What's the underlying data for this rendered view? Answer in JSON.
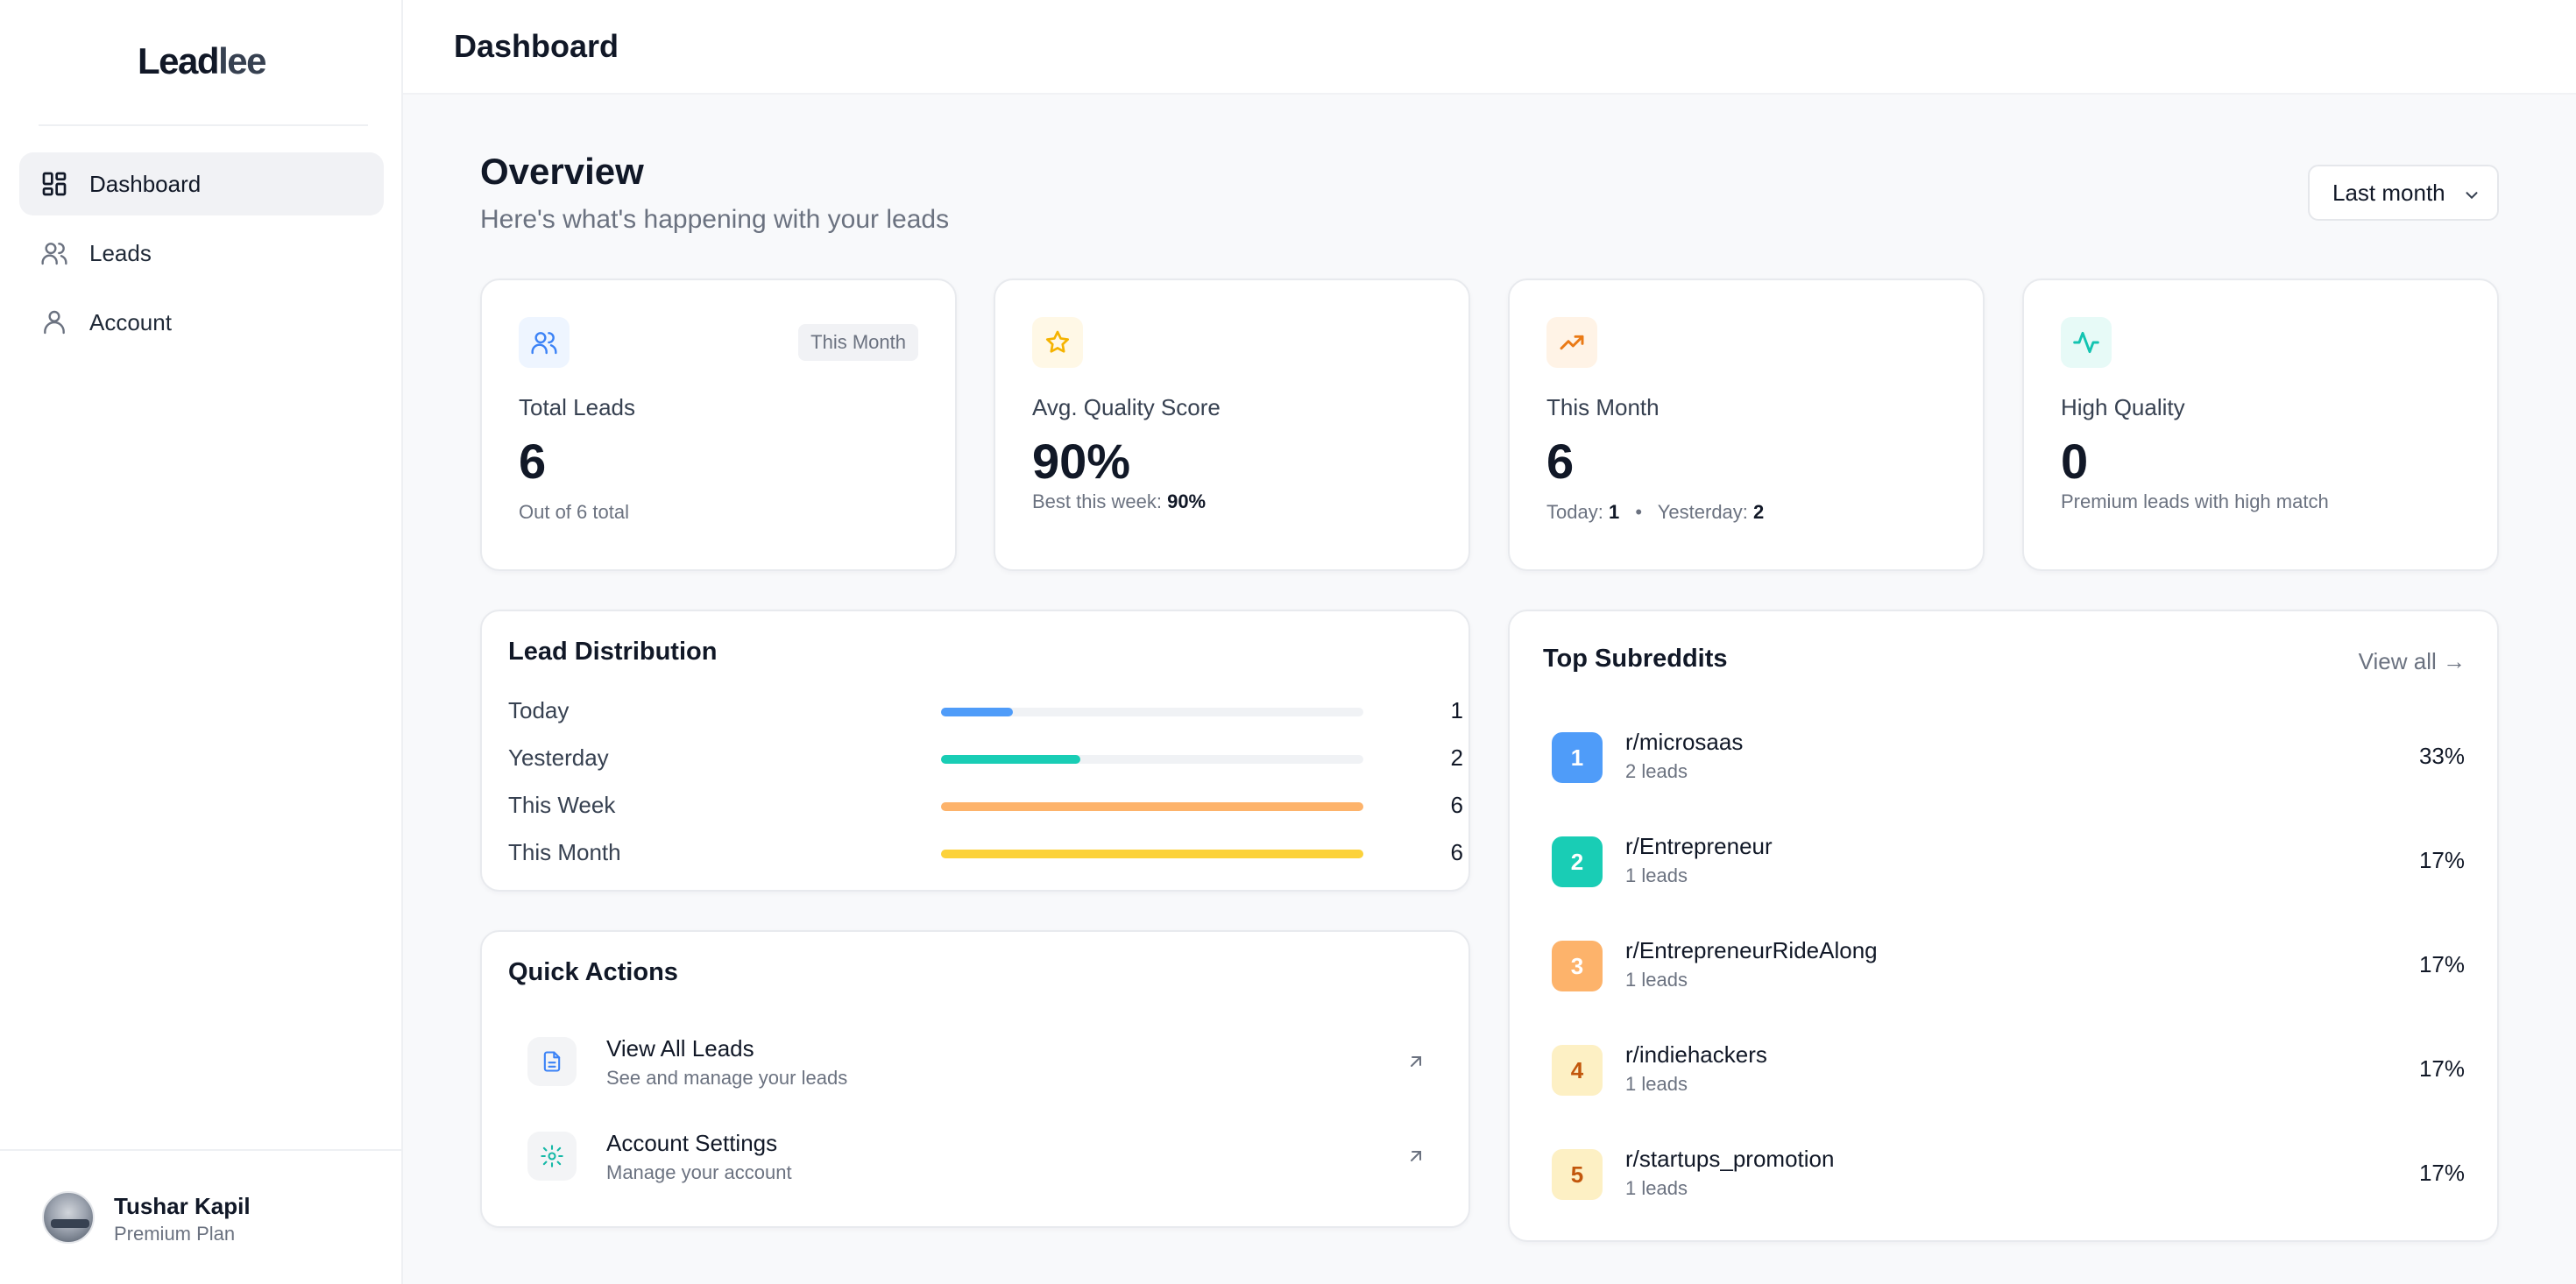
{
  "brand": {
    "name_a": "Lead",
    "name_b": "lee"
  },
  "sidebar": {
    "items": [
      {
        "label": "Dashboard",
        "icon": "dashboard-grid-icon",
        "active": true
      },
      {
        "label": "Leads",
        "icon": "users-icon",
        "active": false
      },
      {
        "label": "Account",
        "icon": "user-icon",
        "active": false
      }
    ]
  },
  "user": {
    "name": "Tushar Kapil",
    "plan": "Premium Plan"
  },
  "header": {
    "title": "Dashboard"
  },
  "overview": {
    "title": "Overview",
    "subtitle": "Here's what's happening with your leads",
    "range": "Last month"
  },
  "stats": [
    {
      "label": "Total Leads",
      "value": "6",
      "badge": "This Month",
      "footer": "Out of 6 total",
      "icon": "users-icon",
      "icon_color": "#3b82f6"
    },
    {
      "label": "Avg. Quality Score",
      "value": "90%",
      "footer_label": "Best this week:",
      "footer_value": "90%",
      "icon": "star-icon",
      "icon_color": "#f5b300"
    },
    {
      "label": "This Month",
      "value": "6",
      "today_label": "Today:",
      "today_value": "1",
      "sep": "•",
      "yesterday_label": "Yesterday:",
      "yesterday_value": "2",
      "icon": "trending-up-icon",
      "icon_color": "#ea7a16"
    },
    {
      "label": "High Quality",
      "value": "0",
      "footer": "Premium leads with high match",
      "icon": "activity-icon",
      "icon_color": "#14c4b1"
    }
  ],
  "distribution": {
    "title": "Lead Distribution",
    "rows": [
      {
        "label": "Today",
        "value": "1",
        "fraction": 0.17,
        "color": "#4f9cf9"
      },
      {
        "label": "Yesterday",
        "value": "2",
        "fraction": 0.33,
        "color": "#19cdb5"
      },
      {
        "label": "This Week",
        "value": "6",
        "fraction": 1.0,
        "color": "#fdb36b"
      },
      {
        "label": "This Month",
        "value": "6",
        "fraction": 1.0,
        "color": "#fcd23a"
      }
    ]
  },
  "quick_actions": {
    "title": "Quick Actions",
    "items": [
      {
        "title": "View All Leads",
        "subtitle": "See and manage your leads",
        "icon": "document-icon",
        "icon_color": "#3b82f6"
      },
      {
        "title": "Account Settings",
        "subtitle": "Manage your account",
        "icon": "gear-icon",
        "icon_color": "#14b8a6"
      }
    ]
  },
  "subreddits": {
    "title": "Top Subreddits",
    "view_all": "View all →",
    "items": [
      {
        "rank": "1",
        "name": "r/microsaas",
        "count": "2 leads",
        "pct": "33%",
        "bg": "#4f9cf9",
        "fg": "#ffffff"
      },
      {
        "rank": "2",
        "name": "r/Entrepreneur",
        "count": "1 leads",
        "pct": "17%",
        "bg": "#19cdb5",
        "fg": "#ffffff"
      },
      {
        "rank": "3",
        "name": "r/EntrepreneurRideAlong",
        "count": "1 leads",
        "pct": "17%",
        "bg": "#fdb36b",
        "fg": "#ffffff"
      },
      {
        "rank": "4",
        "name": "r/indiehackers",
        "count": "1 leads",
        "pct": "17%",
        "bg": "#fdf0c4",
        "fg": "#c2570c"
      },
      {
        "rank": "5",
        "name": "r/startups_promotion",
        "count": "1 leads",
        "pct": "17%",
        "bg": "#fdf0c4",
        "fg": "#c2570c"
      }
    ]
  }
}
